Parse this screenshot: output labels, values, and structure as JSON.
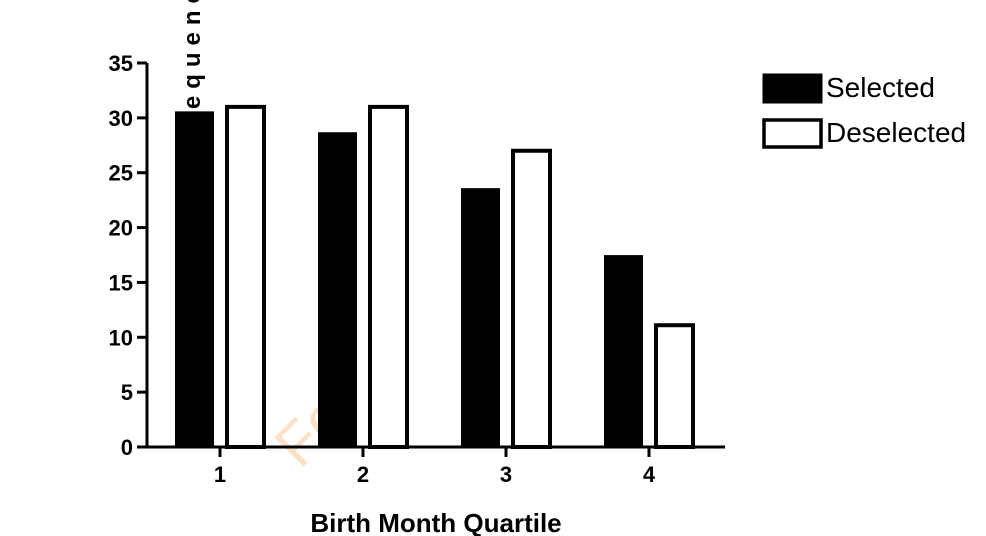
{
  "chart_data": {
    "type": "bar",
    "title": "",
    "xlabel": "Birth Month Quartile",
    "ylabel": "Frequency, %",
    "categories": [
      "1",
      "2",
      "3",
      "4"
    ],
    "series": [
      {
        "name": "Selected",
        "values": [
          30.5,
          28.6,
          23.5,
          17.4
        ],
        "color": "#000000"
      },
      {
        "name": "Deselected",
        "values": [
          31.0,
          31.0,
          27.0,
          11.1
        ],
        "color": "#ffffff"
      }
    ],
    "ylim": [
      0,
      35
    ],
    "yticks": [
      "0",
      "5",
      "10",
      "15",
      "20",
      "25",
      "30",
      "35"
    ],
    "grid": false,
    "legend_position": "top-right"
  },
  "watermark": "For"
}
